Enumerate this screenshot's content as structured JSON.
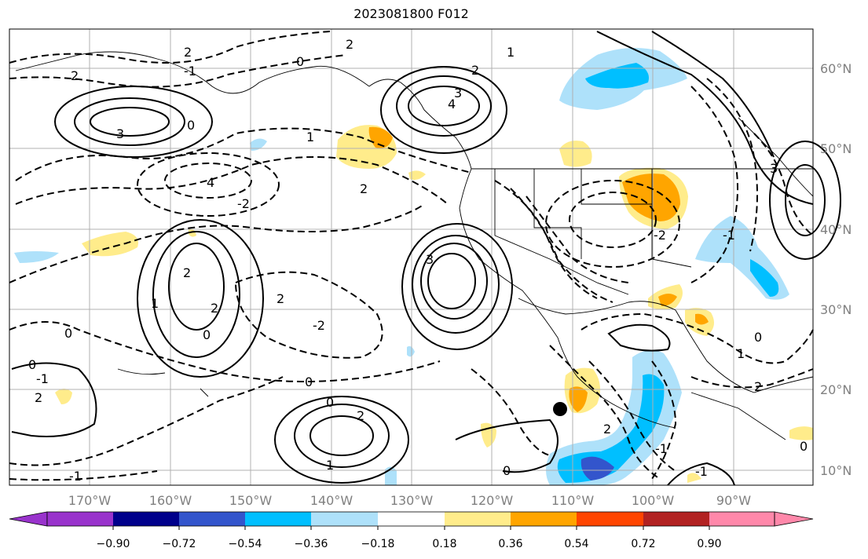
{
  "title": "2023081800 F012",
  "lat_labels": [
    "60°N",
    "50°N",
    "40°N",
    "30°N",
    "20°N",
    "10°N"
  ],
  "lon_labels": [
    "170°W",
    "160°W",
    "150°W",
    "140°W",
    "130°W",
    "120°W",
    "110°W",
    "100°W",
    "90°W"
  ],
  "colorbar": {
    "tick_labels": [
      "−0.90",
      "−0.72",
      "−0.54",
      "−0.36",
      "−0.18",
      "0.18",
      "0.36",
      "0.54",
      "0.72",
      "0.90"
    ],
    "colors": [
      "#9933cc",
      "#00008b",
      "#3355cc",
      "#00bfff",
      "#aee1fa",
      "#ffffff",
      "#ffec8b",
      "#ffa500",
      "#ff4500",
      "#b22222",
      "#ff88aa"
    ]
  },
  "contour_labels": [
    "2",
    "2",
    "0",
    "2",
    "1",
    "3",
    "3",
    "4",
    "0",
    "2",
    "-1",
    "4",
    "2",
    "-2",
    "2",
    "1",
    "3",
    "1",
    "0",
    "-2",
    "0",
    "0",
    "-1",
    "2",
    "0",
    "2",
    "2",
    "-1",
    "0",
    "2",
    "1",
    "2",
    "0",
    "1",
    "2",
    "-1",
    "-2",
    "-1",
    "3",
    "0",
    "0",
    "-1"
  ]
}
